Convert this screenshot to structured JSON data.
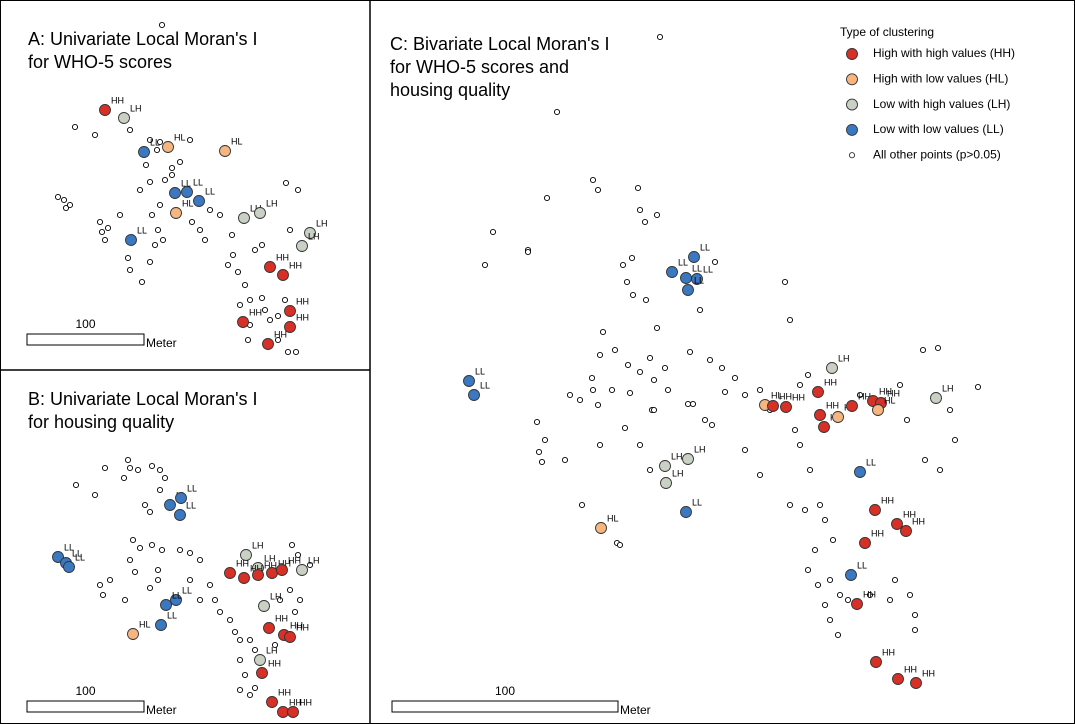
{
  "panels": [
    {
      "title": [
        "A: Univariate Local Moran's I",
        "for WHO-5 scores"
      ],
      "scale_label": "100",
      "scale_unit": "Meter",
      "labels": [
        "HH",
        "LH",
        "LL",
        "HL",
        "HL",
        "LL",
        "LL",
        "LL",
        "HL",
        "LL",
        "LH",
        "LH",
        "LH",
        "LH",
        "HH",
        "HH",
        "HH",
        "HH",
        "HH",
        "HH"
      ]
    },
    {
      "title": [
        "B: Univariate Local Moran's I",
        "for housing quality"
      ],
      "scale_label": "100",
      "scale_unit": "Meter",
      "labels": [
        "LL",
        "LL",
        "LL",
        "LL",
        "LL",
        "LL",
        "LH",
        "LH",
        "HH",
        "HH",
        "HH",
        "HH",
        "HH",
        "LH",
        "LL",
        "LL",
        "LL",
        "HL",
        "LH",
        "HH",
        "HH",
        "HH",
        "LH",
        "HH",
        "HH",
        "HH",
        "HH"
      ]
    },
    {
      "title": [
        "C: Bivariate Local Moran's I",
        "for WHO-5 scores and",
        "housing quality"
      ],
      "scale_label": "100",
      "scale_unit": "Meter",
      "labels": [
        "LL",
        "LL",
        "LL",
        "LL",
        "LL",
        "LL",
        "LL",
        "LH",
        "HH",
        "HL",
        "HH",
        "HH",
        "HH",
        "HH",
        "HL",
        "HH",
        "HH",
        "HH",
        "HL",
        "LH",
        "LH",
        "LH",
        "LH",
        "LL",
        "HL",
        "LL",
        "HH",
        "HH",
        "HH",
        "HH",
        "LL",
        "HH",
        "HH",
        "HH",
        "HH"
      ]
    }
  ],
  "legend": {
    "title": "Type of clustering",
    "items": [
      {
        "name": "High with high values (HH)",
        "color": "#d73027"
      },
      {
        "name": "High with low values (HL)",
        "color": "#f7b580"
      },
      {
        "name": "Low with high values (LH)",
        "color": "#c9d1c5"
      },
      {
        "name": "Low with low values (LL)",
        "color": "#3b78c2"
      },
      {
        "name": "All other points (p>0.05)",
        "color": "#ffffff"
      }
    ]
  }
}
